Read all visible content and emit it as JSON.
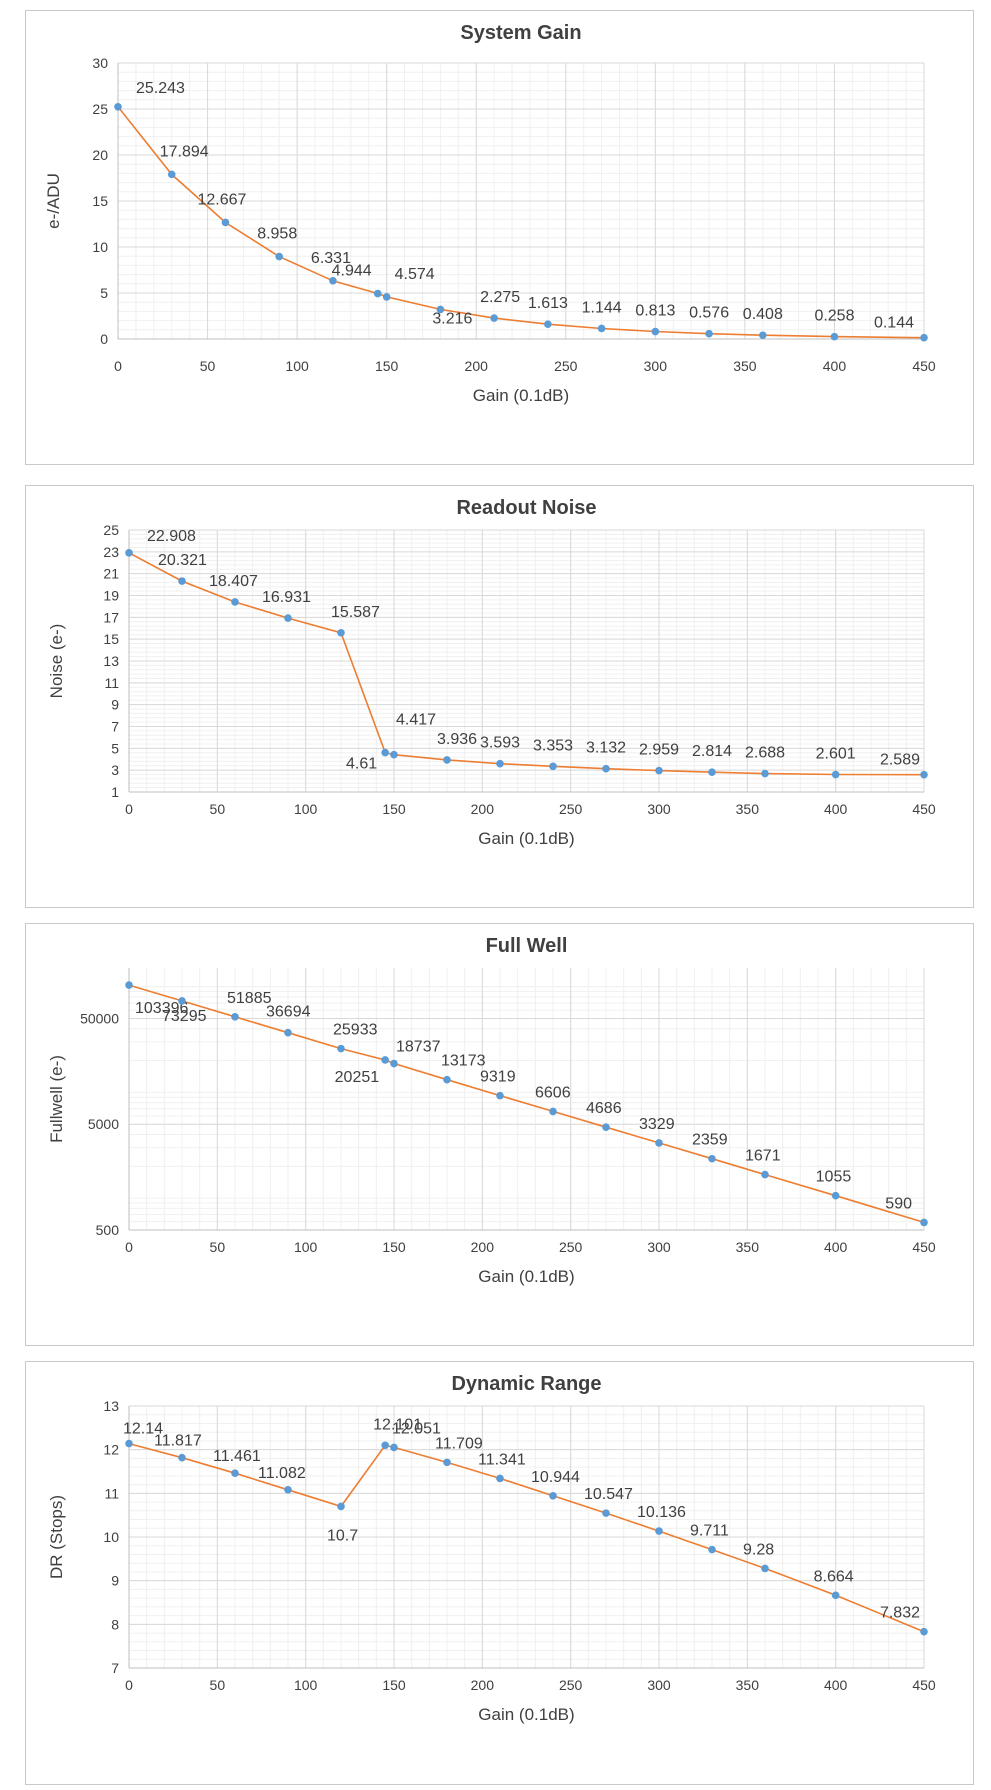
{
  "chart_data": [
    {
      "type": "line",
      "title": "System Gain",
      "xlabel": "Gain (0.1dB)",
      "ylabel": "e-/ADU",
      "x": [
        0,
        30,
        60,
        90,
        120,
        145,
        150,
        180,
        210,
        240,
        270,
        300,
        330,
        360,
        400,
        450
      ],
      "values": [
        25.243,
        17.894,
        12.667,
        8.958,
        6.331,
        4.944,
        4.574,
        3.216,
        2.275,
        1.613,
        1.144,
        0.813,
        0.576,
        0.408,
        0.258,
        0.144
      ],
      "labels": [
        "25.243",
        "17.894",
        "12.667",
        "8.958",
        "6.331",
        "4.944",
        "4.574",
        "3.216",
        "2.275",
        "1.613",
        "1.144",
        "0.813",
        "0.576",
        "0.408",
        "0.258",
        "0.144"
      ],
      "xlim": [
        0,
        450
      ],
      "ylim": [
        0,
        30
      ],
      "xticks": [
        0,
        50,
        100,
        150,
        200,
        250,
        300,
        350,
        400,
        450
      ],
      "yticks": [
        0,
        5,
        10,
        15,
        20,
        25,
        30
      ],
      "yscale": "linear",
      "grid": true,
      "line_color": "#ED7D31",
      "marker_color": "#5B9BD5"
    },
    {
      "type": "line",
      "title": "Readout Noise",
      "xlabel": "Gain (0.1dB)",
      "ylabel": "Noise (e-)",
      "x": [
        0,
        30,
        60,
        90,
        120,
        145,
        150,
        180,
        210,
        240,
        270,
        300,
        330,
        360,
        400,
        450
      ],
      "values": [
        22.908,
        20.321,
        18.407,
        16.931,
        15.587,
        4.61,
        4.417,
        3.936,
        3.593,
        3.353,
        3.132,
        2.959,
        2.814,
        2.688,
        2.601,
        2.589
      ],
      "labels": [
        "22.908",
        "20.321",
        "18.407",
        "16.931",
        "15.587",
        "4.61",
        "4.417",
        "3.936",
        "3.593",
        "3.353",
        "3.132",
        "2.959",
        "2.814",
        "2.688",
        "2.601",
        "2.589"
      ],
      "xlim": [
        0,
        450
      ],
      "ylim": [
        1,
        25
      ],
      "xticks": [
        0,
        50,
        100,
        150,
        200,
        250,
        300,
        350,
        400,
        450
      ],
      "yticks": [
        1,
        3,
        5,
        7,
        9,
        11,
        13,
        15,
        17,
        19,
        21,
        23,
        25
      ],
      "yscale": "linear",
      "grid": true,
      "line_color": "#ED7D31",
      "marker_color": "#5B9BD5"
    },
    {
      "type": "line",
      "title": "Full Well",
      "xlabel": "Gain (0.1dB)",
      "ylabel": "Fullwell (e-)",
      "x": [
        0,
        30,
        60,
        90,
        120,
        145,
        150,
        180,
        210,
        240,
        270,
        300,
        330,
        360,
        400,
        450
      ],
      "values": [
        103396,
        73295,
        51885,
        36694,
        25933,
        20251,
        18737,
        13173,
        9319,
        6606,
        4686,
        3329,
        2359,
        1671,
        1055,
        590
      ],
      "labels": [
        "103396",
        "73295",
        "51885",
        "36694",
        "25933",
        "20251",
        "18737",
        "13173",
        "9319",
        "6606",
        "4686",
        "3329",
        "2359",
        "1671",
        "1055",
        "590"
      ],
      "xlim": [
        0,
        450
      ],
      "ylim": [
        500,
        150000
      ],
      "xticks": [
        0,
        50,
        100,
        150,
        200,
        250,
        300,
        350,
        400,
        450
      ],
      "yticks": [
        500,
        5000,
        50000
      ],
      "yscale": "log",
      "grid": true,
      "line_color": "#ED7D31",
      "marker_color": "#5B9BD5"
    },
    {
      "type": "line",
      "title": "Dynamic Range",
      "xlabel": "Gain (0.1dB)",
      "ylabel": "DR (Stops)",
      "x": [
        0,
        30,
        60,
        90,
        120,
        145,
        150,
        180,
        210,
        240,
        270,
        300,
        330,
        360,
        400,
        450
      ],
      "values": [
        12.14,
        11.817,
        11.461,
        11.082,
        10.7,
        12.101,
        12.051,
        11.709,
        11.341,
        10.944,
        10.547,
        10.136,
        9.711,
        9.28,
        8.664,
        7.832
      ],
      "labels": [
        "12.14",
        "11.817",
        "11.461",
        "11.082",
        "10.7",
        "12.101",
        "12.051",
        "11.709",
        "11.341",
        "10.944",
        "10.547",
        "10.136",
        "9.711",
        "9.28",
        "8.664",
        "7.832"
      ],
      "xlim": [
        0,
        450
      ],
      "ylim": [
        7,
        13
      ],
      "xticks": [
        0,
        50,
        100,
        150,
        200,
        250,
        300,
        350,
        400,
        450
      ],
      "yticks": [
        7,
        8,
        9,
        10,
        11,
        12,
        13
      ],
      "yscale": "linear",
      "grid": true,
      "line_color": "#ED7D31",
      "marker_color": "#5B9BD5"
    }
  ]
}
